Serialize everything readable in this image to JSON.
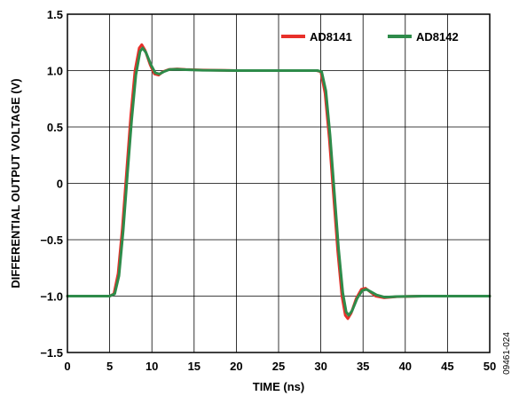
{
  "chart_data": {
    "type": "line",
    "xlabel": "TIME (ns)",
    "ylabel": "DIFFERENTIAL OUTPUT VOLTAGE (V)",
    "xlim": [
      0,
      50
    ],
    "ylim": [
      -1.5,
      1.5
    ],
    "x_ticks": [
      "0",
      "5",
      "10",
      "15",
      "20",
      "25",
      "30",
      "35",
      "40",
      "45",
      "50"
    ],
    "y_ticks": [
      "1.5",
      "1.0",
      "0.5",
      "0",
      "−0.5",
      "−1.0",
      "−1.5"
    ],
    "grid": true,
    "legend_position": "top-right",
    "figure_code": "09461-024",
    "series": [
      {
        "name": "AD8141",
        "color": "#e8302a",
        "points": [
          [
            0,
            -1.0
          ],
          [
            5.0,
            -1.0
          ],
          [
            5.5,
            -0.98
          ],
          [
            6.0,
            -0.8
          ],
          [
            6.5,
            -0.4
          ],
          [
            7.0,
            0.1
          ],
          [
            7.5,
            0.6
          ],
          [
            8.0,
            1.0
          ],
          [
            8.5,
            1.2
          ],
          [
            8.8,
            1.23
          ],
          [
            9.2,
            1.18
          ],
          [
            9.8,
            1.05
          ],
          [
            10.3,
            0.97
          ],
          [
            10.8,
            0.96
          ],
          [
            11.3,
            0.99
          ],
          [
            12.0,
            1.01
          ],
          [
            13.0,
            1.015
          ],
          [
            14.0,
            1.01
          ],
          [
            16.0,
            1.005
          ],
          [
            20.0,
            1.0
          ],
          [
            25.0,
            1.0
          ],
          [
            29.5,
            1.0
          ],
          [
            30.0,
            0.99
          ],
          [
            30.5,
            0.8
          ],
          [
            31.0,
            0.4
          ],
          [
            31.5,
            -0.1
          ],
          [
            32.0,
            -0.6
          ],
          [
            32.5,
            -1.0
          ],
          [
            32.9,
            -1.17
          ],
          [
            33.2,
            -1.2
          ],
          [
            33.6,
            -1.15
          ],
          [
            34.2,
            -1.02
          ],
          [
            34.8,
            -0.94
          ],
          [
            35.3,
            -0.93
          ],
          [
            35.8,
            -0.96
          ],
          [
            36.5,
            -1.0
          ],
          [
            37.5,
            -1.015
          ],
          [
            39.0,
            -1.005
          ],
          [
            42.0,
            -1.0
          ],
          [
            50.0,
            -1.0
          ]
        ]
      },
      {
        "name": "AD8142",
        "color": "#2e8b4a",
        "points": [
          [
            0,
            -1.0
          ],
          [
            5.0,
            -1.0
          ],
          [
            5.6,
            -0.98
          ],
          [
            6.1,
            -0.82
          ],
          [
            6.6,
            -0.42
          ],
          [
            7.1,
            0.08
          ],
          [
            7.6,
            0.56
          ],
          [
            8.1,
            0.96
          ],
          [
            8.6,
            1.17
          ],
          [
            8.9,
            1.2
          ],
          [
            9.3,
            1.16
          ],
          [
            9.9,
            1.05
          ],
          [
            10.4,
            0.98
          ],
          [
            10.9,
            0.97
          ],
          [
            11.4,
            0.99
          ],
          [
            12.1,
            1.01
          ],
          [
            13.0,
            1.012
          ],
          [
            14.0,
            1.008
          ],
          [
            16.0,
            1.003
          ],
          [
            20.0,
            1.0
          ],
          [
            25.0,
            1.0
          ],
          [
            29.6,
            1.0
          ],
          [
            30.1,
            0.99
          ],
          [
            30.6,
            0.82
          ],
          [
            31.1,
            0.42
          ],
          [
            31.6,
            -0.08
          ],
          [
            32.1,
            -0.58
          ],
          [
            32.6,
            -0.97
          ],
          [
            33.0,
            -1.14
          ],
          [
            33.3,
            -1.17
          ],
          [
            33.7,
            -1.13
          ],
          [
            34.3,
            -1.02
          ],
          [
            34.9,
            -0.95
          ],
          [
            35.4,
            -0.94
          ],
          [
            35.9,
            -0.96
          ],
          [
            36.6,
            -0.99
          ],
          [
            37.6,
            -1.01
          ],
          [
            39.0,
            -1.004
          ],
          [
            42.0,
            -1.0
          ],
          [
            50.0,
            -1.0
          ]
        ]
      }
    ]
  }
}
